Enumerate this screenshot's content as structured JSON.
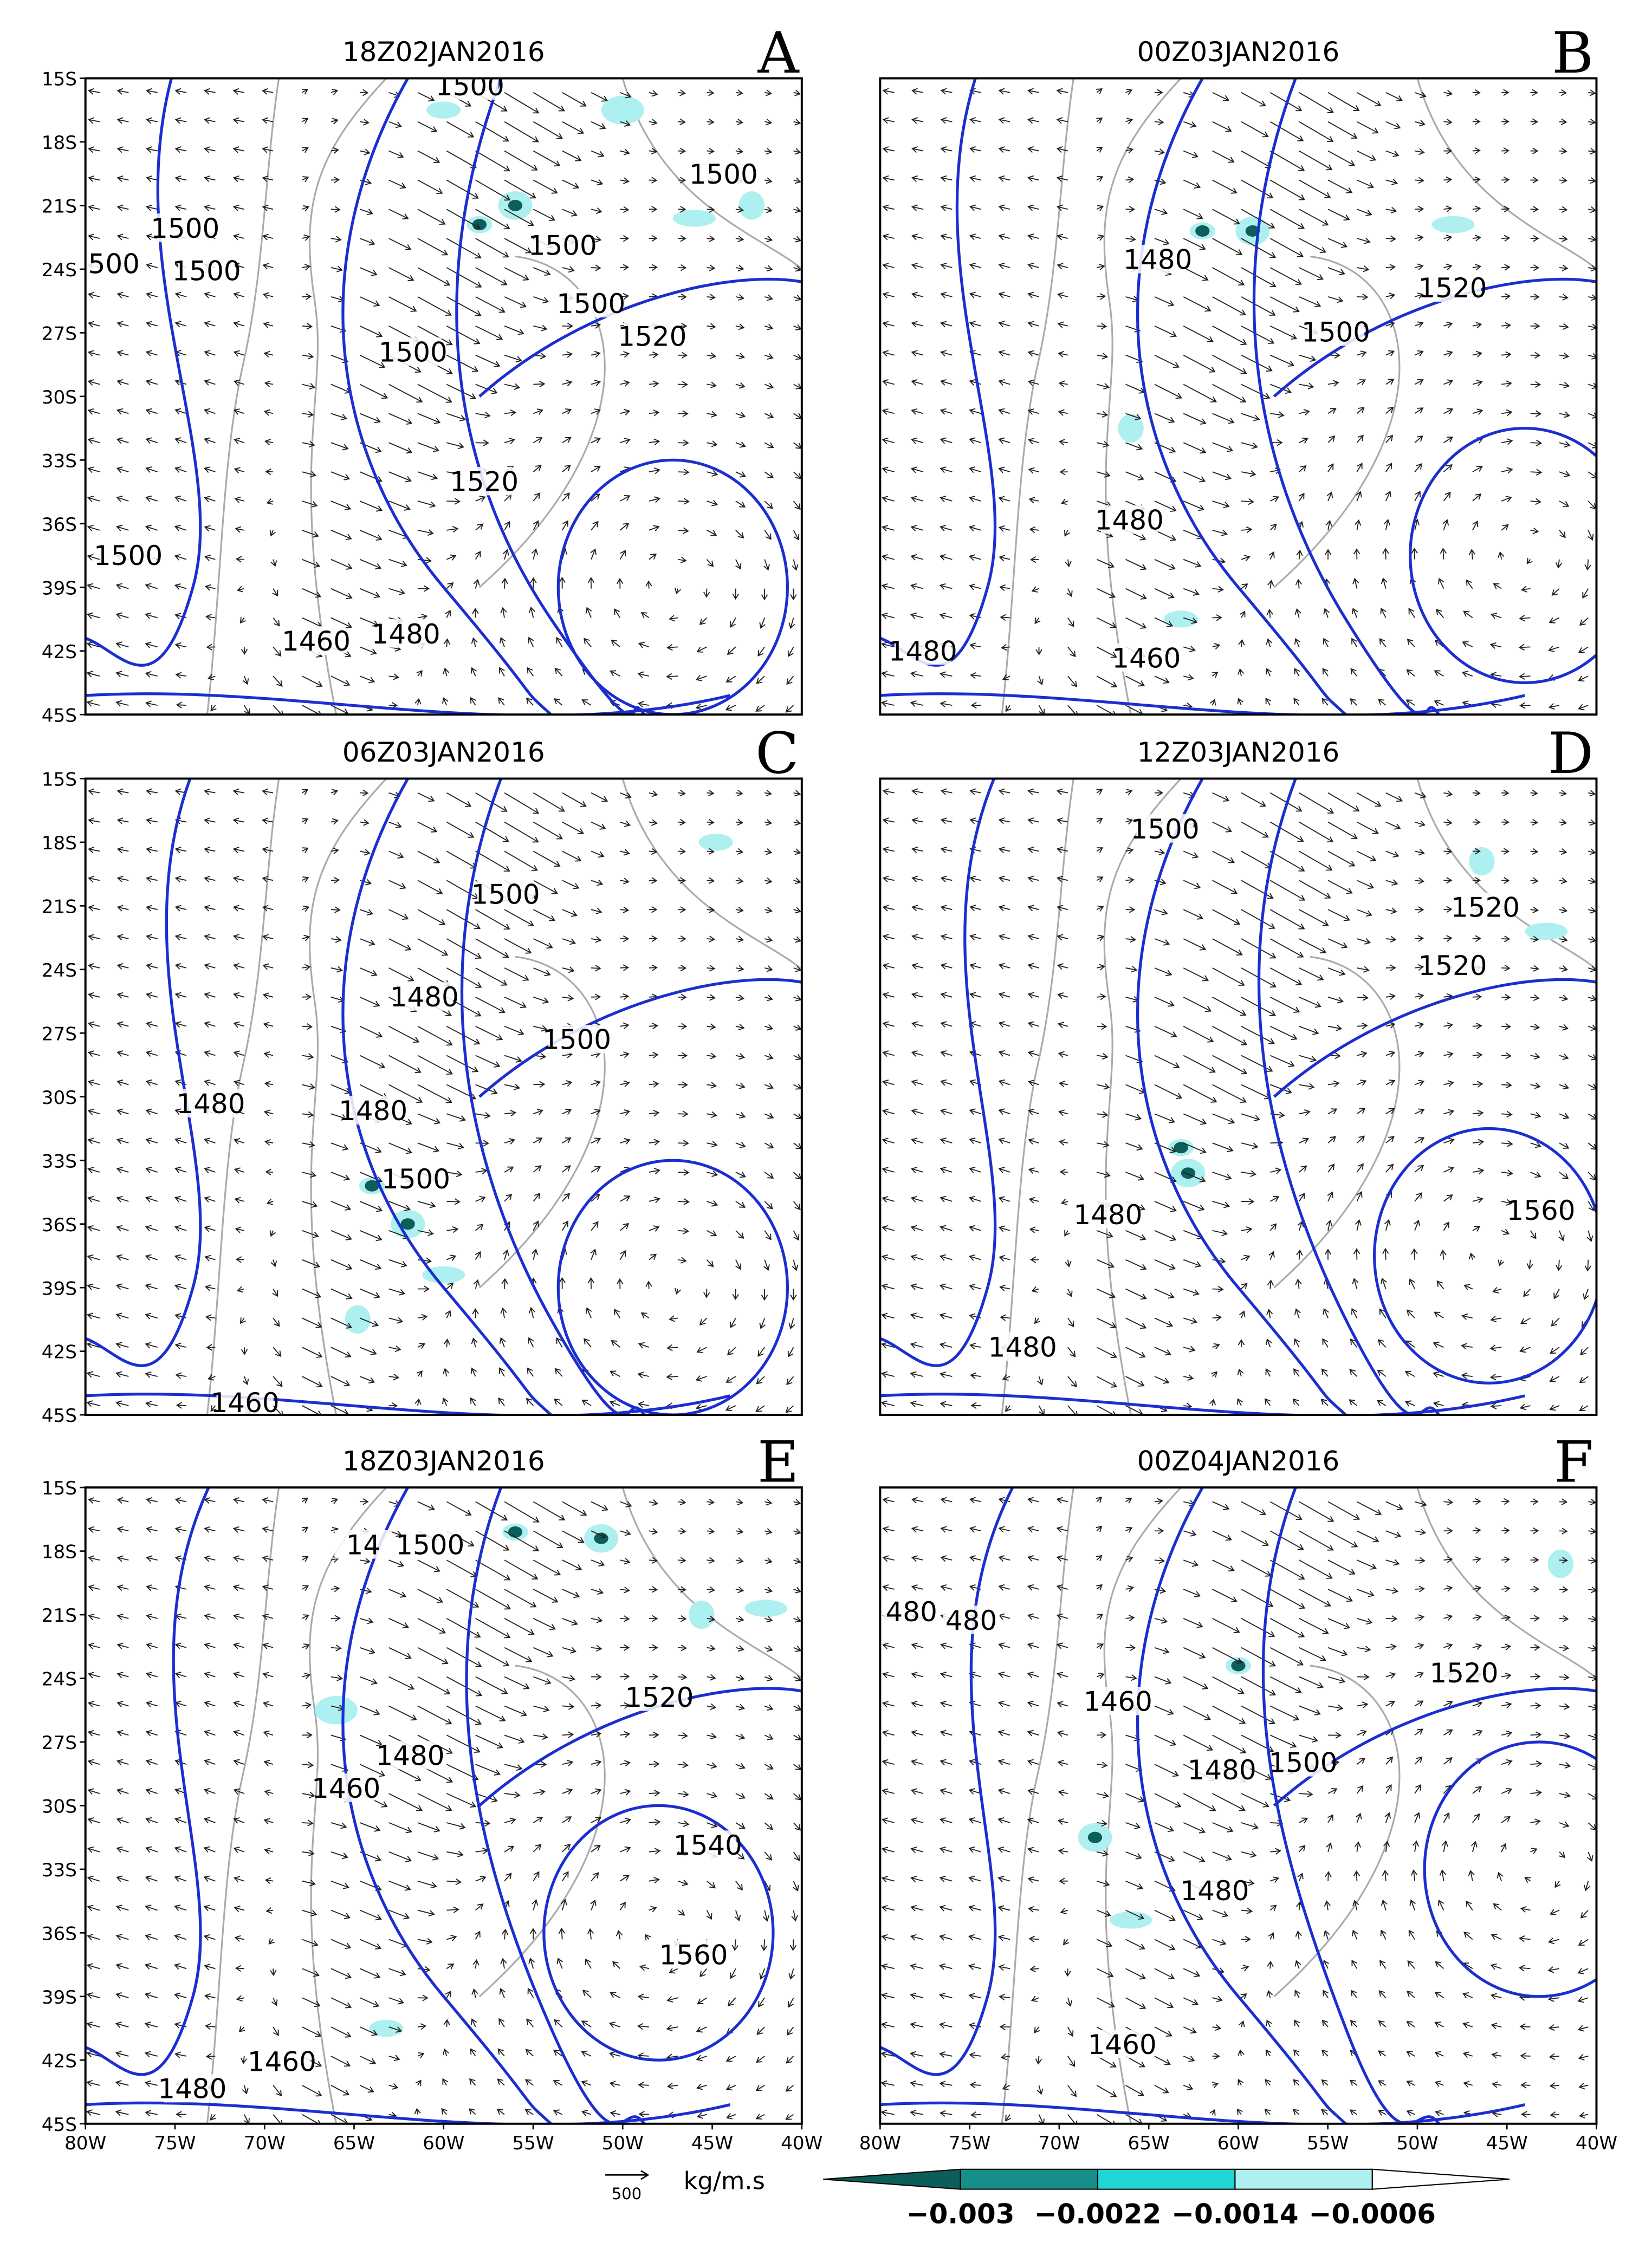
{
  "panels": [
    {
      "title": "18Z02JAN2016",
      "letter": "A",
      "contour_labels": [
        "1500",
        "1500",
        "1500",
        "500",
        "1500",
        "1500",
        "1500",
        "1520",
        "1500",
        "1520",
        "1500",
        "1460",
        "1480"
      ]
    },
    {
      "title": "00Z03JAN2016",
      "letter": "B",
      "contour_labels": [
        "1480",
        "1520",
        "1500",
        "1480",
        "1480",
        "1460"
      ]
    },
    {
      "title": "06Z03JAN2016",
      "letter": "C",
      "contour_labels": [
        "1500",
        "1480",
        "1500",
        "1480",
        "1480",
        "1500",
        "1460"
      ]
    },
    {
      "title": "12Z03JAN2016",
      "letter": "D",
      "contour_labels": [
        "1500",
        "1520",
        "1520",
        "1480",
        "1560",
        "1480"
      ]
    },
    {
      "title": "18Z03JAN2016",
      "letter": "E",
      "contour_labels": [
        "14",
        "1500",
        "1520",
        "1480",
        "1460",
        "1540",
        "1560",
        "1460",
        "1480"
      ]
    },
    {
      "title": "00Z04JAN2016",
      "letter": "F",
      "contour_labels": [
        "480",
        "480",
        "1520",
        "1460",
        "1480",
        "1500",
        "1480",
        "1460"
      ]
    }
  ],
  "axes": {
    "lat_labels": [
      "15S",
      "18S",
      "21S",
      "24S",
      "27S",
      "30S",
      "33S",
      "36S",
      "39S",
      "42S",
      "45S"
    ],
    "lon_labels": [
      "80W",
      "75W",
      "70W",
      "65W",
      "60W",
      "55W",
      "50W",
      "45W",
      "40W"
    ]
  },
  "vector_scale": {
    "value": "500",
    "unit": "kg/m.s"
  },
  "colorbar": {
    "labels": [
      "−0.003",
      "−0.0022",
      "−0.0014",
      "−0.0006"
    ]
  }
}
